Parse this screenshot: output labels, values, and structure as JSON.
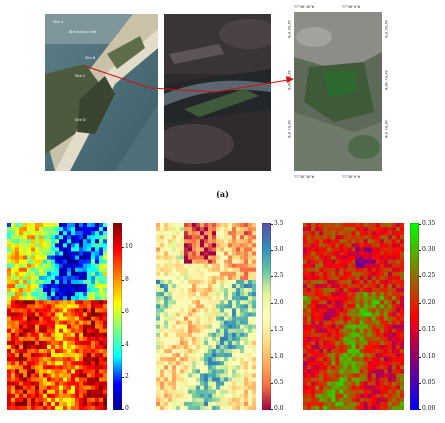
{
  "figure": {
    "caption_a": "(a)",
    "panel_a": {
      "aerial_labels": [
        "Site A",
        "Bird Island Inlet",
        "Site B",
        "Site C",
        "Site D"
      ],
      "geo_top": [
        "77°58'30\"W",
        "77°58'0\"W"
      ],
      "geo_bottom": [
        "77°58'30\"W",
        "77°58'0\"W"
      ],
      "geo_left": [
        "34°02'0\"N",
        "34°01'30\"N",
        "34°01'0\"N"
      ],
      "geo_right": [
        "34°02'0\"N",
        "34°01'30\"N",
        "34°01'0\"N"
      ],
      "arrow_color": "#d01010"
    },
    "panel_b": {
      "maps": [
        {
          "name": "map-1",
          "colormap": "jet",
          "colorbar_ticks": [
            "0",
            "2",
            "4",
            "6",
            "8",
            "10"
          ],
          "colorbar_range": [
            0,
            11.5
          ]
        },
        {
          "name": "map-2",
          "colormap": "spectral",
          "colorbar_ticks": [
            "0.0",
            "0.5",
            "1.0",
            "1.5",
            "2.0",
            "2.5",
            "3.0",
            "3.5"
          ],
          "colorbar_range": [
            0,
            3.5
          ]
        },
        {
          "name": "map-3",
          "colormap": "brg",
          "colorbar_ticks": [
            "0.00",
            "0.05",
            "0.10",
            "0.15",
            "0.20",
            "0.25",
            "0.30",
            "0.35"
          ],
          "colorbar_range": [
            0,
            0.35
          ]
        }
      ]
    }
  }
}
